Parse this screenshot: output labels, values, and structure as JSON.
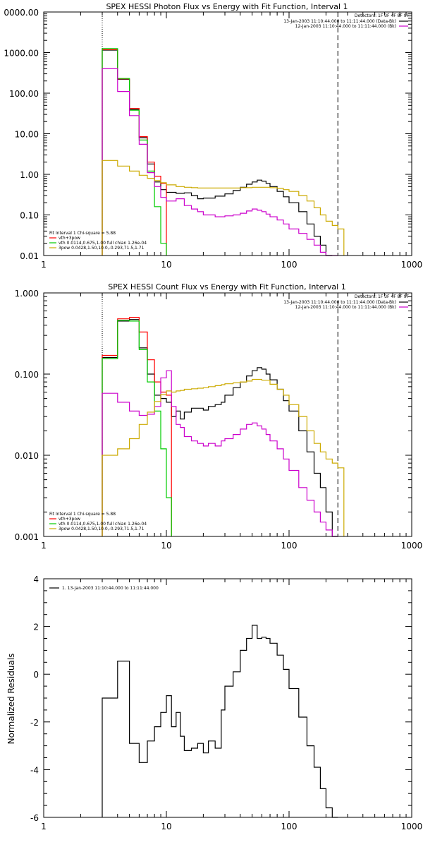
{
  "chart_data": [
    {
      "type": "line",
      "title": "SPEX HESSI Photon Flux vs Energy with Fit Function, Interval 1",
      "xscale": "log",
      "yscale": "log",
      "xlim": [
        1,
        1000
      ],
      "ylim": [
        0.01,
        10000
      ],
      "xticks": [
        "1",
        "10",
        "100",
        "1000"
      ],
      "yticks": [
        "0.01",
        "0.10",
        "1.00",
        "10.00",
        "100.00",
        "1000.00",
        "0000.00"
      ],
      "detectors": "Detectors: 1F 3F 4F 8F 9F",
      "time_lines": [
        {
          "text": "13-Jan-2003 11:10:44.000 to 11:11:44.000 (Data-Bk)",
          "color": "#000000"
        },
        {
          "text": "12-Jan-2003 11:10:44.000 to 11:11:44.000 (Bk)",
          "color": "#cc00cc"
        }
      ],
      "fit_info": "Fit Interval 1   Chi-square = 5.88",
      "fit_legend": [
        {
          "text": "vth+3pow",
          "color": "#ff0000"
        },
        {
          "text": "vth 0.0114,0.675,1.00  full chian 1.26e-04",
          "color": "#00cc00"
        },
        {
          "text": "3pow 0.0428,1.50,10.0,-0.293,71.5,1.71",
          "color": "#ccaa00"
        }
      ],
      "vlines": [
        {
          "x": 3,
          "style": "dotted"
        },
        {
          "x": 250,
          "style": "dashed"
        }
      ],
      "series": [
        {
          "color": "#000000",
          "edges": [
            3,
            4,
            5,
            6,
            7,
            8,
            9,
            10,
            12,
            14,
            16,
            18,
            20,
            25,
            30,
            35,
            40,
            45,
            50,
            55,
            60,
            65,
            70,
            80,
            90,
            100,
            120,
            140,
            160,
            180,
            200,
            225
          ],
          "values": [
            1150,
            220,
            40,
            8,
            1.8,
            0.65,
            0.42,
            0.36,
            0.34,
            0.35,
            0.3,
            0.25,
            0.26,
            0.29,
            0.33,
            0.4,
            0.48,
            0.57,
            0.65,
            0.72,
            0.68,
            0.6,
            0.5,
            0.38,
            0.28,
            0.2,
            0.12,
            0.06,
            0.03,
            0.018,
            0.01
          ]
        },
        {
          "color": "#ff0000",
          "edges": [
            3,
            4,
            5,
            6,
            7,
            8,
            9,
            10
          ],
          "values": [
            1180,
            225,
            42,
            8.5,
            2.0,
            0.9,
            0.6
          ]
        },
        {
          "color": "#00cc00",
          "edges": [
            3,
            4,
            5,
            6,
            7,
            8,
            9,
            10
          ],
          "values": [
            1250,
            230,
            38,
            7,
            1.2,
            0.16,
            0.02
          ]
        },
        {
          "color": "#cc00cc",
          "edges": [
            3,
            4,
            5,
            6,
            7,
            8,
            9,
            10,
            12,
            14,
            16,
            18,
            20,
            25,
            30,
            35,
            40,
            45,
            50,
            55,
            60,
            65,
            70,
            80,
            90,
            100,
            120,
            140,
            160,
            180,
            200,
            225,
            250
          ],
          "values": [
            400,
            110,
            28,
            5.5,
            1.1,
            0.5,
            0.27,
            0.22,
            0.25,
            0.17,
            0.14,
            0.12,
            0.1,
            0.09,
            0.095,
            0.1,
            0.11,
            0.125,
            0.14,
            0.13,
            0.12,
            0.105,
            0.09,
            0.075,
            0.06,
            0.045,
            0.035,
            0.025,
            0.018,
            0.012,
            0.01,
            0.008
          ]
        },
        {
          "color": "#ccaa00",
          "edges": [
            3,
            4,
            5,
            6,
            7,
            8,
            9,
            10,
            12,
            14,
            16,
            18,
            20,
            25,
            30,
            35,
            40,
            45,
            50,
            60,
            70,
            80,
            90,
            100,
            120,
            140,
            160,
            180,
            200,
            225,
            250,
            280
          ],
          "values": [
            2.2,
            1.6,
            1.2,
            0.95,
            0.8,
            0.7,
            0.62,
            0.55,
            0.5,
            0.48,
            0.47,
            0.46,
            0.46,
            0.46,
            0.46,
            0.46,
            0.47,
            0.47,
            0.48,
            0.48,
            0.47,
            0.45,
            0.42,
            0.38,
            0.3,
            0.22,
            0.15,
            0.1,
            0.07,
            0.055,
            0.045
          ]
        }
      ]
    },
    {
      "type": "line",
      "title": "SPEX HESSI Count Flux vs Energy with Fit Function, Interval 1",
      "xscale": "log",
      "yscale": "log",
      "xlim": [
        1,
        1000
      ],
      "ylim": [
        0.001,
        1
      ],
      "xticks": [
        "1",
        "10",
        "100",
        "1000"
      ],
      "yticks": [
        "0.001",
        "0.010",
        "0.100",
        "1.000"
      ],
      "detectors": "Detectors: 1F 3F 4F 8F 9F",
      "time_lines": [
        {
          "text": "13-Jan-2003 11:10:44.000 to 11:11:44.000 (Data-Bk)",
          "color": "#000000"
        },
        {
          "text": "12-Jan-2003 11:10:44.000 to 11:11:44.000 (Bk)",
          "color": "#cc00cc"
        }
      ],
      "fit_info": "Fit Interval 1   Chi-square = 5.88",
      "fit_legend": [
        {
          "text": "vth+3pow",
          "color": "#ff0000"
        },
        {
          "text": "vth 0.0114,0.675,1.00  full chian 1.26e-04",
          "color": "#00cc00"
        },
        {
          "text": "3pow 0.0428,1.50,10.0,-0.293,71.5,1.71",
          "color": "#ccaa00"
        }
      ],
      "vlines": [
        {
          "x": 3,
          "style": "dotted"
        },
        {
          "x": 250,
          "style": "dashed"
        }
      ],
      "series": [
        {
          "color": "#000000",
          "edges": [
            3,
            4,
            5,
            6,
            7,
            8,
            9,
            10,
            11,
            12,
            13,
            14,
            16,
            18,
            20,
            22,
            25,
            28,
            30,
            35,
            40,
            45,
            50,
            55,
            60,
            65,
            70,
            80,
            90,
            100,
            120,
            140,
            160,
            180,
            200,
            225,
            250
          ],
          "values": [
            0.16,
            0.45,
            0.47,
            0.21,
            0.1,
            0.055,
            0.05,
            0.045,
            0.03,
            0.035,
            0.028,
            0.034,
            0.038,
            0.038,
            0.036,
            0.04,
            0.042,
            0.045,
            0.055,
            0.068,
            0.08,
            0.095,
            0.11,
            0.12,
            0.115,
            0.1,
            0.085,
            0.065,
            0.047,
            0.035,
            0.02,
            0.011,
            0.006,
            0.004,
            0.002,
            0.001
          ]
        },
        {
          "color": "#ff0000",
          "edges": [
            3,
            4,
            5,
            6,
            7,
            8,
            9,
            10,
            11
          ],
          "values": [
            0.17,
            0.48,
            0.5,
            0.33,
            0.15,
            0.08,
            0.06,
            0.055
          ]
        },
        {
          "color": "#00cc00",
          "edges": [
            3,
            4,
            5,
            6,
            7,
            8,
            9,
            10,
            11
          ],
          "values": [
            0.155,
            0.46,
            0.45,
            0.2,
            0.08,
            0.035,
            0.012,
            0.003
          ]
        },
        {
          "color": "#cc00cc",
          "edges": [
            3,
            4,
            5,
            6,
            7,
            8,
            9,
            10,
            11,
            12,
            13,
            14,
            16,
            18,
            20,
            22,
            25,
            28,
            30,
            35,
            40,
            45,
            50,
            55,
            60,
            65,
            70,
            80,
            90,
            100,
            120,
            140,
            160,
            180,
            200,
            225,
            250
          ],
          "values": [
            0.058,
            0.045,
            0.035,
            0.031,
            0.032,
            0.04,
            0.09,
            0.11,
            0.04,
            0.024,
            0.022,
            0.017,
            0.015,
            0.014,
            0.013,
            0.014,
            0.013,
            0.015,
            0.016,
            0.018,
            0.021,
            0.024,
            0.025,
            0.023,
            0.021,
            0.018,
            0.015,
            0.012,
            0.009,
            0.0065,
            0.004,
            0.0028,
            0.002,
            0.0015,
            0.0012,
            0.001
          ]
        },
        {
          "color": "#ccaa00",
          "edges": [
            3,
            4,
            5,
            6,
            7,
            8,
            9,
            10,
            11,
            12,
            13,
            14,
            16,
            18,
            20,
            22,
            25,
            28,
            30,
            35,
            40,
            45,
            50,
            60,
            70,
            80,
            90,
            100,
            120,
            140,
            160,
            180,
            200,
            225,
            250,
            280
          ],
          "values": [
            0.01,
            0.012,
            0.016,
            0.024,
            0.034,
            0.046,
            0.056,
            0.062,
            0.06,
            0.062,
            0.063,
            0.065,
            0.066,
            0.067,
            0.068,
            0.07,
            0.072,
            0.074,
            0.076,
            0.078,
            0.08,
            0.082,
            0.086,
            0.084,
            0.075,
            0.065,
            0.055,
            0.042,
            0.03,
            0.02,
            0.014,
            0.011,
            0.009,
            0.008,
            0.007
          ]
        }
      ]
    },
    {
      "type": "line",
      "title": "",
      "xscale": "log",
      "yscale": "linear",
      "xlim": [
        1,
        1000
      ],
      "ylim": [
        -6,
        4
      ],
      "xticks": [
        "1",
        "10",
        "100",
        "1000"
      ],
      "yticks": [
        "-6",
        "-4",
        "-2",
        "0",
        "2",
        "4"
      ],
      "ylabel": "Normalized Residuals",
      "time_lines": [
        {
          "text": "1. 13-Jan-2003 11:10:44.000 to 11:11:44.000",
          "color": "#000000"
        }
      ],
      "series": [
        {
          "color": "#000000",
          "edges": [
            3,
            4,
            5,
            6,
            7,
            8,
            9,
            10,
            11,
            12,
            13,
            14,
            16,
            18,
            20,
            22,
            25,
            28,
            30,
            35,
            40,
            45,
            50,
            55,
            60,
            65,
            70,
            80,
            90,
            100,
            120,
            140,
            160,
            180,
            200,
            225,
            250
          ],
          "values": [
            -1.0,
            0.55,
            -2.9,
            -3.7,
            -2.8,
            -2.2,
            -1.6,
            -0.9,
            -2.2,
            -1.6,
            -2.6,
            -3.2,
            -3.1,
            -2.9,
            -3.3,
            -2.8,
            -3.1,
            -1.5,
            -0.5,
            0.1,
            1.0,
            1.5,
            2.05,
            1.5,
            1.55,
            1.5,
            1.3,
            0.8,
            0.2,
            -0.6,
            -1.8,
            -3.0,
            -3.9,
            -4.8,
            -5.6,
            -6.0
          ]
        }
      ]
    }
  ]
}
